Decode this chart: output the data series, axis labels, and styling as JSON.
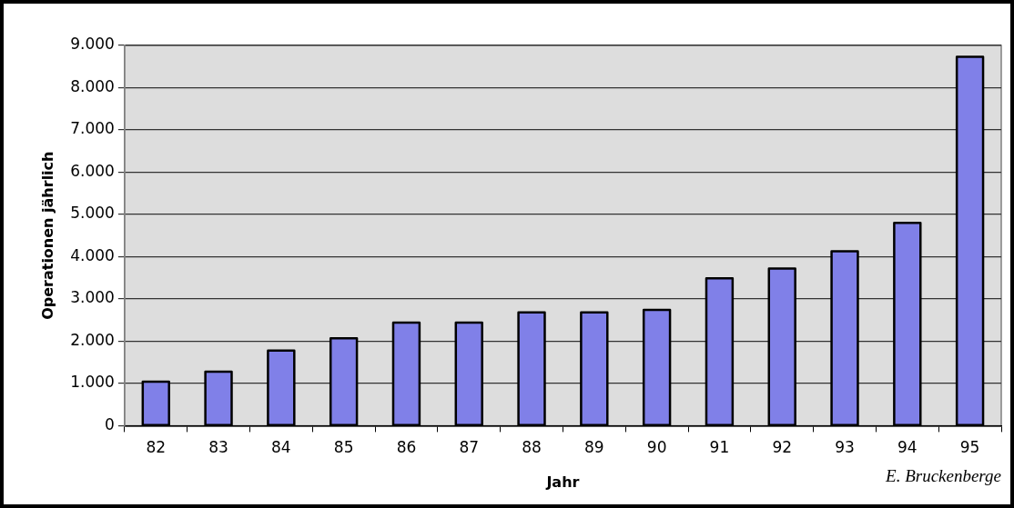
{
  "chart_data": {
    "type": "bar",
    "xlabel": "Jahr",
    "ylabel": "Operationen jährlich",
    "categories": [
      "82",
      "83",
      "84",
      "85",
      "86",
      "87",
      "88",
      "89",
      "90",
      "91",
      "92",
      "93",
      "94",
      "95"
    ],
    "values": [
      1040,
      1280,
      1780,
      2070,
      2440,
      2440,
      2680,
      2680,
      2740,
      3490,
      3720,
      4130,
      4800,
      8730
    ],
    "color": "#8080e8",
    "ylim": [
      0,
      9000
    ],
    "yticks": [
      {
        "value": 0,
        "label": "0"
      },
      {
        "value": 1000,
        "label": "1.000"
      },
      {
        "value": 2000,
        "label": "2.000"
      },
      {
        "value": 3000,
        "label": "3.000"
      },
      {
        "value": 4000,
        "label": "4.000"
      },
      {
        "value": 5000,
        "label": "5.000"
      },
      {
        "value": 6000,
        "label": "6.000"
      },
      {
        "value": 7000,
        "label": "7.000"
      },
      {
        "value": 8000,
        "label": "8.000"
      },
      {
        "value": 9000,
        "label": "9.000"
      }
    ],
    "grid": "y",
    "legend": false,
    "annotations": [
      "E. Bruckenberge"
    ]
  }
}
